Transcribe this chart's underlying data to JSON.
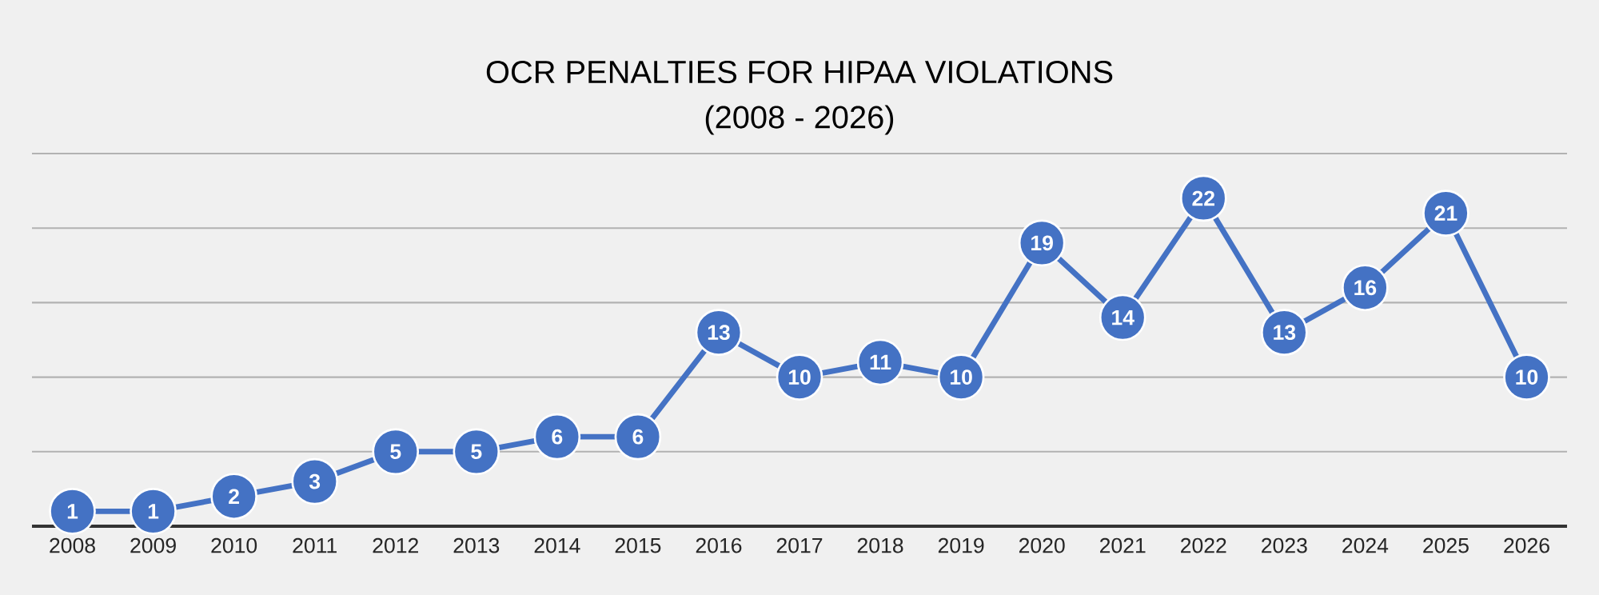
{
  "chart_data": {
    "type": "line",
    "title": "OCR PENALTIES FOR HIPAA VIOLATIONS",
    "subtitle": "(2008 - 2026)",
    "categories": [
      "2008",
      "2009",
      "2010",
      "2011",
      "2012",
      "2013",
      "2014",
      "2015",
      "2016",
      "2017",
      "2018",
      "2019",
      "2020",
      "2021",
      "2022",
      "2023",
      "2024",
      "2025",
      "2026"
    ],
    "values": [
      1,
      1,
      2,
      3,
      5,
      5,
      6,
      6,
      13,
      10,
      11,
      10,
      19,
      14,
      22,
      13,
      16,
      21,
      10
    ],
    "color": "#4472c4",
    "ylim": [
      0,
      25
    ],
    "yticks": [
      {
        "value": 0,
        "label": null
      },
      {
        "value": 5,
        "label": null
      },
      {
        "value": 10,
        "label": null
      },
      {
        "value": 15,
        "label": null
      },
      {
        "value": 20,
        "label": null
      },
      {
        "value": 25,
        "label": null
      }
    ],
    "tick_labels": "x",
    "grid": "y",
    "marker": "circle",
    "line_style": "solid",
    "data_labels": true
  }
}
